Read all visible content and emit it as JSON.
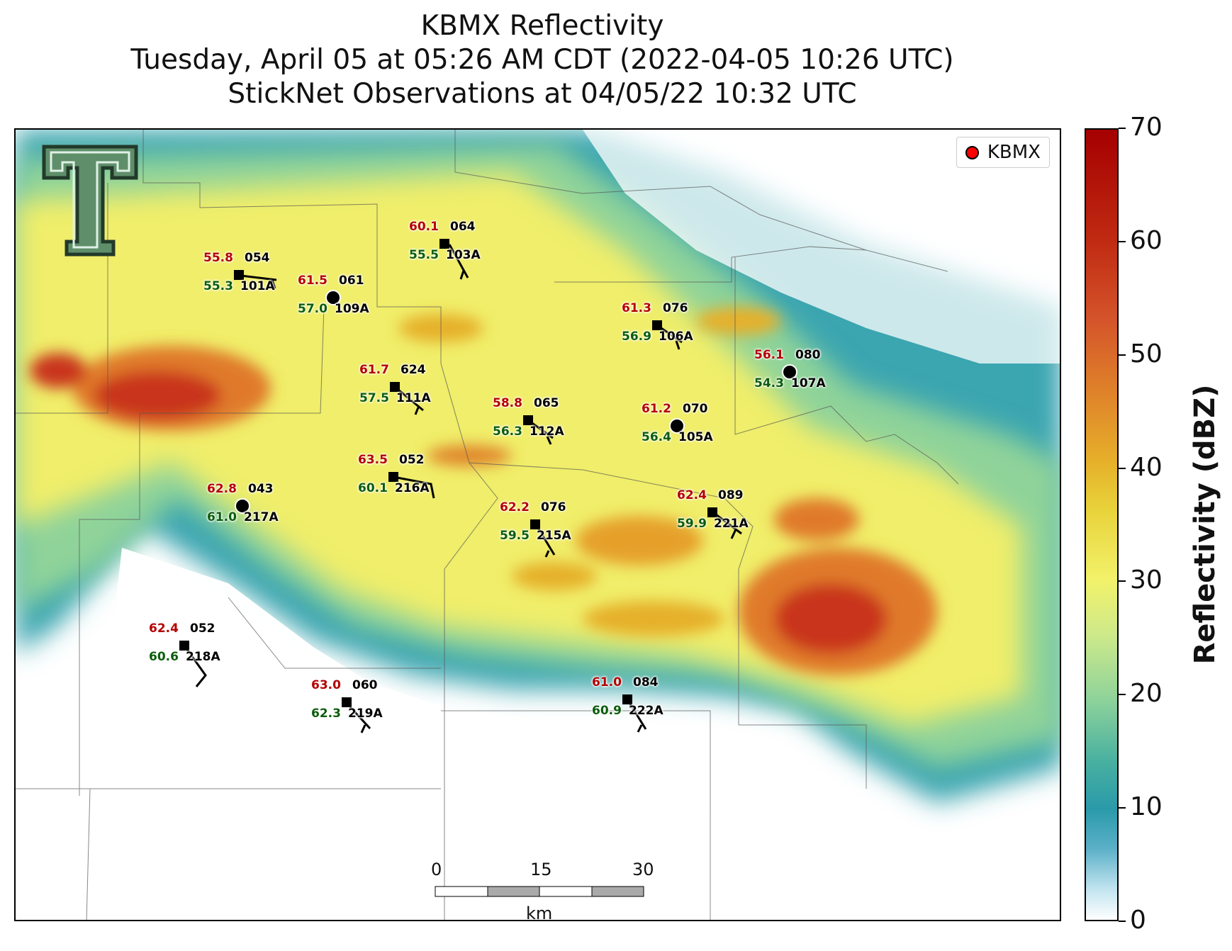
{
  "title": {
    "line1": "KBMX Reflectivity",
    "line2": "Tuesday, April 05 at 05:26 AM CDT (2022-04-05 10:26 UTC)",
    "line3": "StickNet Observations at 04/05/22 10:32 UTC"
  },
  "legend": {
    "label": "KBMX",
    "marker_color": "#ff0000"
  },
  "colorbar": {
    "title": "Reflectivity (dBZ)",
    "ticks": [
      "0",
      "10",
      "20",
      "30",
      "40",
      "50",
      "60",
      "70"
    ],
    "range": [
      0,
      70
    ],
    "colors": [
      "#ffffff",
      "#2a9aaa",
      "#8fd39a",
      "#f2f26a",
      "#e6b02a",
      "#d4542a",
      "#a50000"
    ]
  },
  "scale_bar": {
    "labels": [
      "0",
      "15",
      "30"
    ],
    "unit": "km"
  },
  "stations": [
    {
      "id": "064",
      "temp": "60.1",
      "dew": "55.5",
      "pres": "103A",
      "marker": "square"
    },
    {
      "id": "054",
      "temp": "55.8",
      "dew": "55.3",
      "pres": "101A",
      "marker": "square"
    },
    {
      "id": "061",
      "temp": "61.5",
      "dew": "57.0",
      "pres": "109A",
      "marker": "circle"
    },
    {
      "id": "076",
      "temp": "61.3",
      "dew": "56.9",
      "pres": "106A",
      "marker": "square"
    },
    {
      "id": "080",
      "temp": "56.1",
      "dew": "54.3",
      "pres": "107A",
      "marker": "circle"
    },
    {
      "id": "624",
      "temp": "61.7",
      "dew": "57.5",
      "pres": "111A",
      "marker": "square"
    },
    {
      "id": "065",
      "temp": "58.8",
      "dew": "56.3",
      "pres": "112A",
      "marker": "square"
    },
    {
      "id": "070",
      "temp": "61.2",
      "dew": "56.4",
      "pres": "105A",
      "marker": "circle"
    },
    {
      "id": "052",
      "temp": "63.5",
      "dew": "60.1",
      "pres": "216A",
      "marker": "square"
    },
    {
      "id": "043",
      "temp": "62.8",
      "dew": "61.0",
      "pres": "217A",
      "marker": "circle"
    },
    {
      "id": "076",
      "temp": "62.2",
      "dew": "59.5",
      "pres": "215A",
      "marker": "square"
    },
    {
      "id": "089",
      "temp": "62.4",
      "dew": "59.9",
      "pres": "221A",
      "marker": "square"
    },
    {
      "id": "052",
      "temp": "62.4",
      "dew": "60.6",
      "pres": "218A",
      "marker": "square"
    },
    {
      "id": "060",
      "temp": "63.0",
      "dew": "62.3",
      "pres": "219A",
      "marker": "square"
    },
    {
      "id": "084",
      "temp": "61.0",
      "dew": "60.9",
      "pres": "222A",
      "marker": "square"
    }
  ]
}
